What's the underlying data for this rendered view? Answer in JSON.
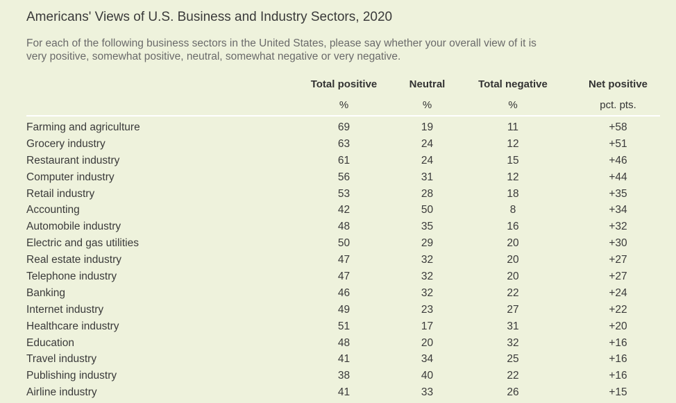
{
  "title": "Americans' Views of U.S. Business and Industry Sectors, 2020",
  "subtitle": "For each of the following business sectors in the United States, please say whether your overall view of it is very positive, somewhat positive, neutral, somewhat negative or very negative.",
  "chart_data": {
    "type": "table",
    "columns": [
      "Total positive",
      "Neutral",
      "Total negative",
      "Net positive"
    ],
    "units": [
      "%",
      "%",
      "%",
      "pct. pts."
    ],
    "rows": [
      {
        "sector": "Farming and agriculture",
        "total_positive": "69",
        "neutral": "19",
        "total_negative": "11",
        "net_positive": "+58"
      },
      {
        "sector": "Grocery industry",
        "total_positive": "63",
        "neutral": "24",
        "total_negative": "12",
        "net_positive": "+51"
      },
      {
        "sector": "Restaurant industry",
        "total_positive": "61",
        "neutral": "24",
        "total_negative": "15",
        "net_positive": "+46"
      },
      {
        "sector": "Computer industry",
        "total_positive": "56",
        "neutral": "31",
        "total_negative": "12",
        "net_positive": "+44"
      },
      {
        "sector": "Retail industry",
        "total_positive": "53",
        "neutral": "28",
        "total_negative": "18",
        "net_positive": "+35"
      },
      {
        "sector": "Accounting",
        "total_positive": "42",
        "neutral": "50",
        "total_negative": "8",
        "net_positive": "+34"
      },
      {
        "sector": "Automobile industry",
        "total_positive": "48",
        "neutral": "35",
        "total_negative": "16",
        "net_positive": "+32"
      },
      {
        "sector": "Electric and gas utilities",
        "total_positive": "50",
        "neutral": "29",
        "total_negative": "20",
        "net_positive": "+30"
      },
      {
        "sector": "Real estate industry",
        "total_positive": "47",
        "neutral": "32",
        "total_negative": "20",
        "net_positive": "+27"
      },
      {
        "sector": "Telephone industry",
        "total_positive": "47",
        "neutral": "32",
        "total_negative": "20",
        "net_positive": "+27"
      },
      {
        "sector": "Banking",
        "total_positive": "46",
        "neutral": "32",
        "total_negative": "22",
        "net_positive": "+24"
      },
      {
        "sector": "Internet industry",
        "total_positive": "49",
        "neutral": "23",
        "total_negative": "27",
        "net_positive": "+22"
      },
      {
        "sector": "Healthcare industry",
        "total_positive": "51",
        "neutral": "17",
        "total_negative": "31",
        "net_positive": "+20"
      },
      {
        "sector": "Education",
        "total_positive": "48",
        "neutral": "20",
        "total_negative": "32",
        "net_positive": "+16"
      },
      {
        "sector": "Travel industry",
        "total_positive": "41",
        "neutral": "34",
        "total_negative": "25",
        "net_positive": "+16"
      },
      {
        "sector": "Publishing industry",
        "total_positive": "38",
        "neutral": "40",
        "total_negative": "22",
        "net_positive": "+16"
      },
      {
        "sector": "Airline industry",
        "total_positive": "41",
        "neutral": "33",
        "total_negative": "26",
        "net_positive": "+15"
      }
    ]
  }
}
